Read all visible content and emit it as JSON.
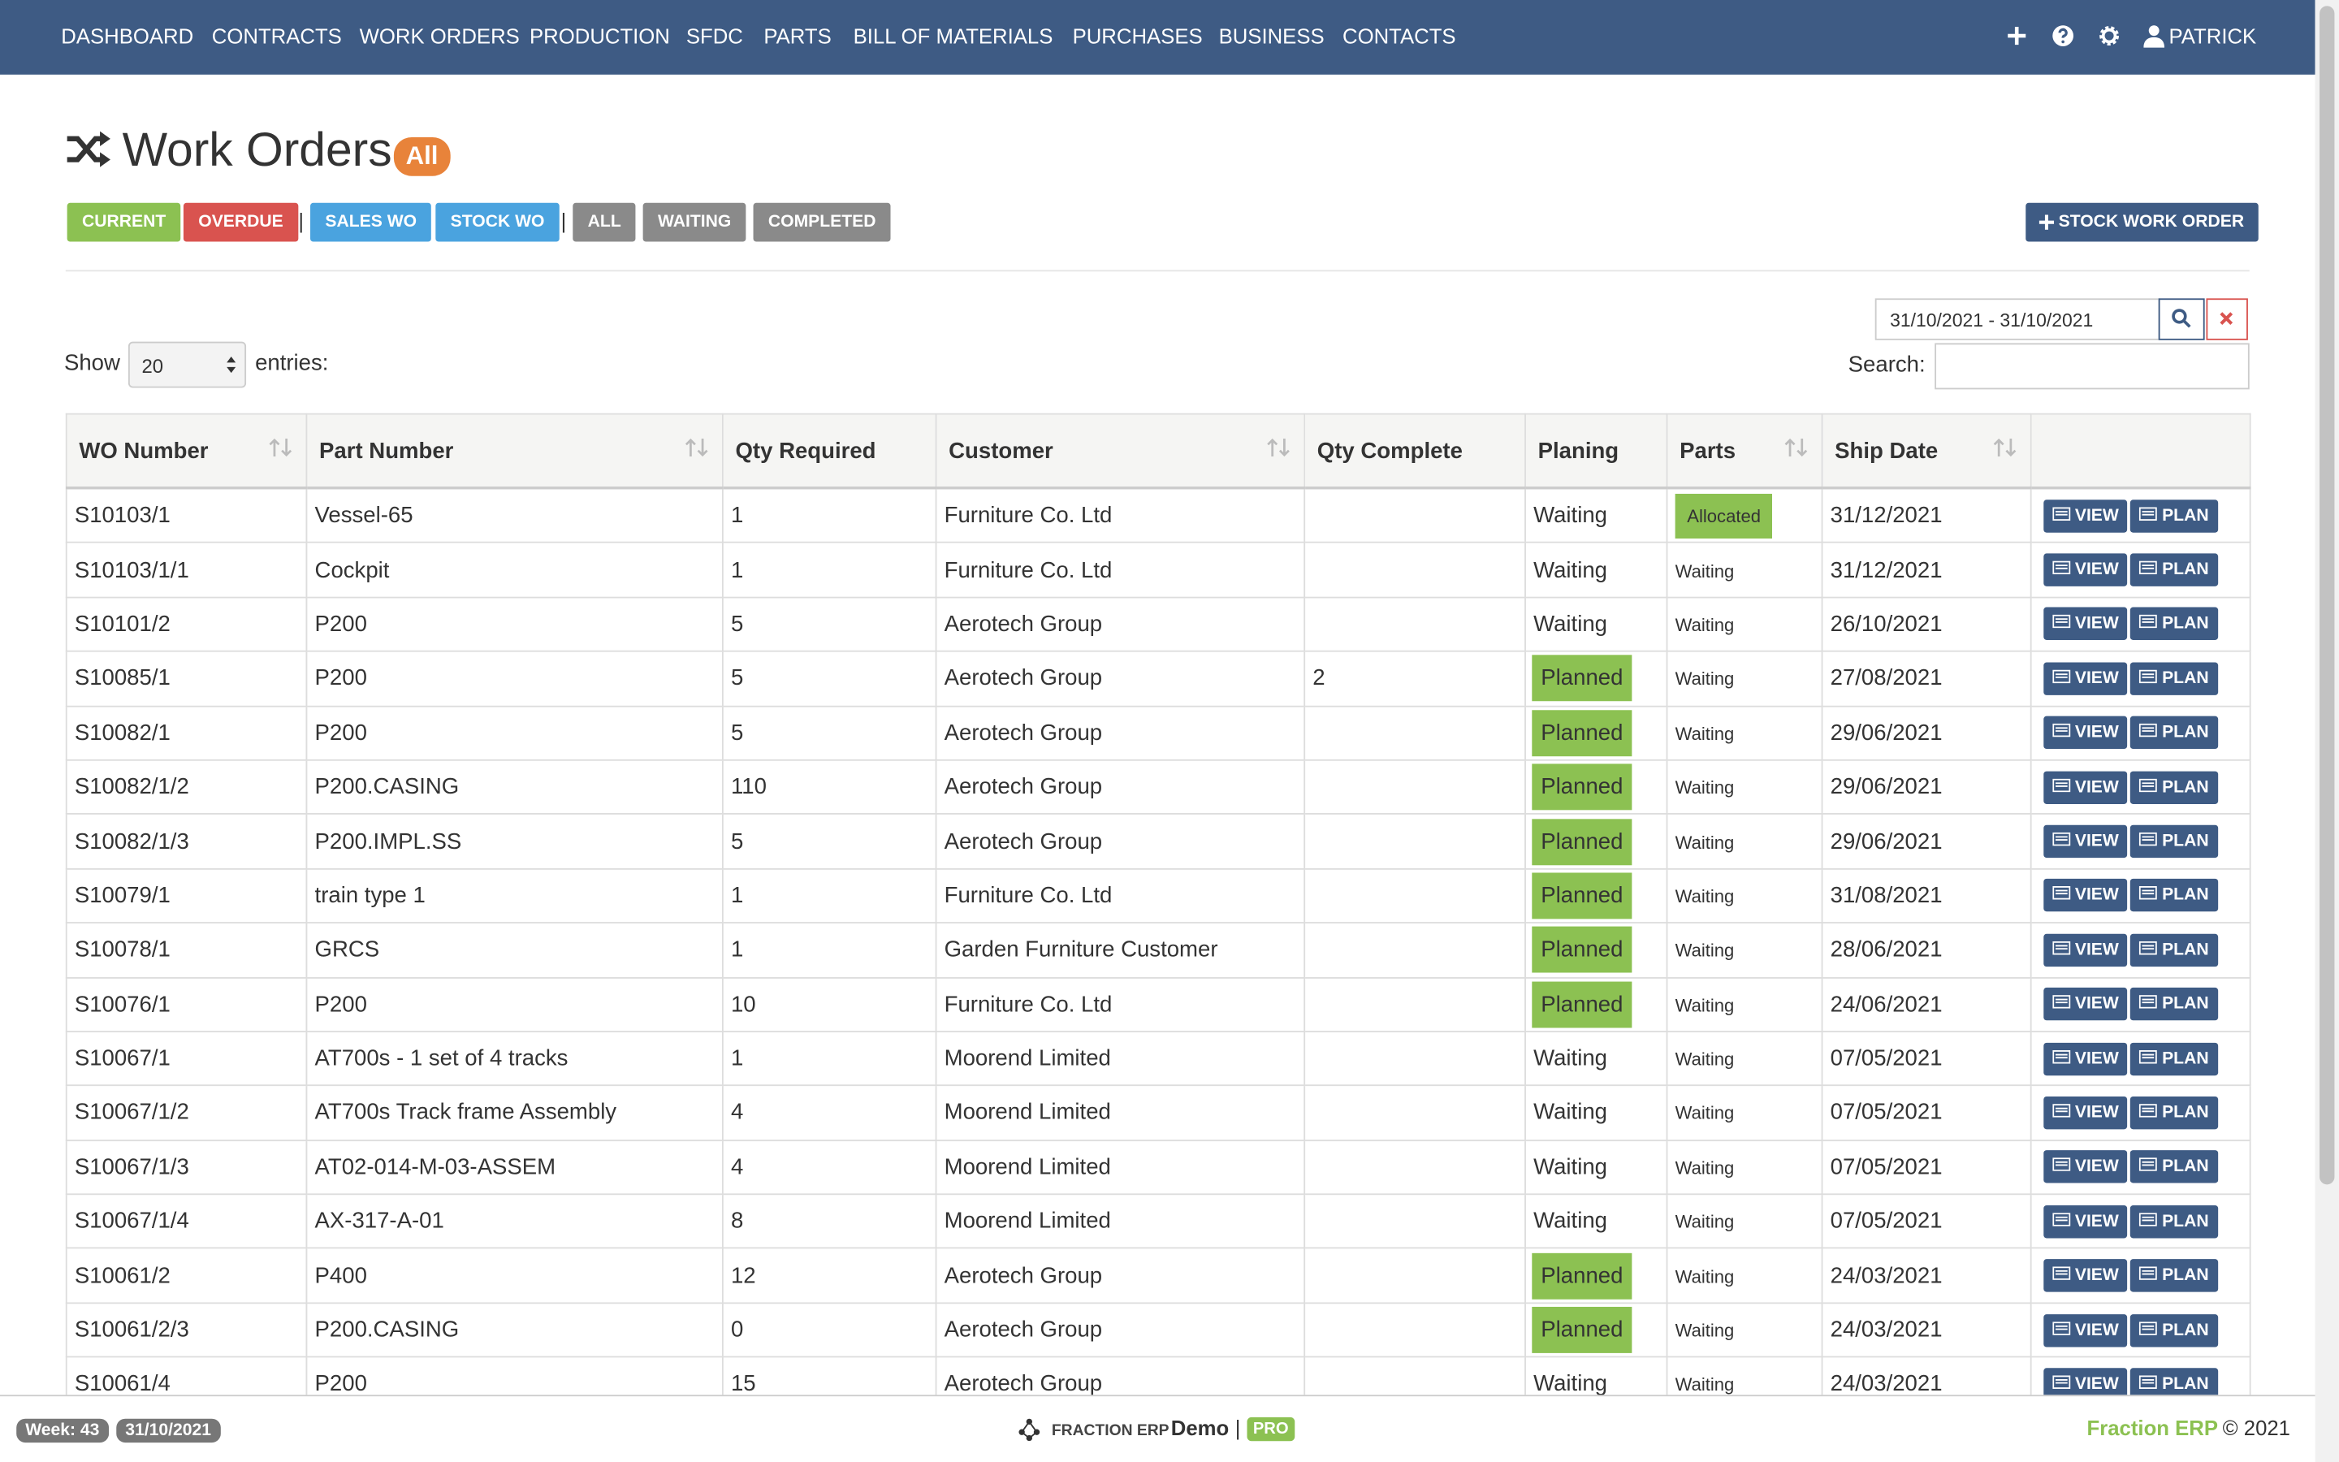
{
  "nav": {
    "items": [
      "DASHBOARD",
      "CONTRACTS",
      "WORK ORDERS",
      "PRODUCTION",
      "SFDC",
      "PARTS",
      "BILL OF MATERIALS",
      "PURCHASES",
      "BUSINESS",
      "CONTACTS"
    ],
    "user": "PATRICK"
  },
  "header": {
    "title": "Work Orders",
    "badge": "All",
    "filters": [
      {
        "label": "CURRENT",
        "color": "#8cc152"
      },
      {
        "label": "OVERDUE",
        "color": "#d9534f"
      },
      {
        "label": "|"
      },
      {
        "label": "SALES WO",
        "color": "#4aa3df"
      },
      {
        "label": "STOCK WO",
        "color": "#4aa3df"
      },
      {
        "label": "|"
      },
      {
        "label": "ALL",
        "color": "#8a8a8a"
      },
      {
        "label": "WAITING",
        "color": "#8a8a8a"
      },
      {
        "label": "COMPLETED",
        "color": "#8a8a8a"
      }
    ],
    "new_button": "STOCK WORK ORDER"
  },
  "controls": {
    "date_range": "31/10/2021 - 31/10/2021",
    "show_label": "Show",
    "page_size": "20",
    "entries_label": "entries:",
    "search_label": "Search:"
  },
  "table": {
    "columns": [
      "WO Number",
      "Part Number",
      "Qty Required",
      "Customer",
      "Qty Complete",
      "Planing",
      "Parts",
      "Ship Date",
      ""
    ],
    "sortable": [
      true,
      true,
      false,
      true,
      false,
      false,
      true,
      true,
      false
    ],
    "actions": [
      "VIEW",
      "PLAN"
    ],
    "rows": [
      [
        "S10103/1",
        "Vessel-65",
        "1",
        "Furniture Co. Ltd",
        "",
        "Waiting",
        "Allocated",
        "31/12/2021"
      ],
      [
        "S10103/1/1",
        "Cockpit",
        "1",
        "Furniture Co. Ltd",
        "",
        "Waiting",
        "Waiting",
        "31/12/2021"
      ],
      [
        "S10101/2",
        "P200",
        "5",
        "Aerotech Group",
        "",
        "Waiting",
        "Waiting",
        "26/10/2021"
      ],
      [
        "S10085/1",
        "P200",
        "5",
        "Aerotech Group",
        "2",
        "Planned",
        "Waiting",
        "27/08/2021"
      ],
      [
        "S10082/1",
        "P200",
        "5",
        "Aerotech Group",
        "",
        "Planned",
        "Waiting",
        "29/06/2021"
      ],
      [
        "S10082/1/2",
        "P200.CASING",
        "110",
        "Aerotech Group",
        "",
        "Planned",
        "Waiting",
        "29/06/2021"
      ],
      [
        "S10082/1/3",
        "P200.IMPL.SS",
        "5",
        "Aerotech Group",
        "",
        "Planned",
        "Waiting",
        "29/06/2021"
      ],
      [
        "S10079/1",
        "train type 1",
        "1",
        "Furniture Co. Ltd",
        "",
        "Planned",
        "Waiting",
        "31/08/2021"
      ],
      [
        "S10078/1",
        "GRCS",
        "1",
        "Garden Furniture Customer",
        "",
        "Planned",
        "Waiting",
        "28/06/2021"
      ],
      [
        "S10076/1",
        "P200",
        "10",
        "Furniture Co. Ltd",
        "",
        "Planned",
        "Waiting",
        "24/06/2021"
      ],
      [
        "S10067/1",
        "AT700s - 1 set of 4 tracks",
        "1",
        "Moorend Limited",
        "",
        "Waiting",
        "Waiting",
        "07/05/2021"
      ],
      [
        "S10067/1/2",
        "AT700s Track frame Assembly",
        "4",
        "Moorend Limited",
        "",
        "Waiting",
        "Waiting",
        "07/05/2021"
      ],
      [
        "S10067/1/3",
        "AT02-014-M-03-ASSEM",
        "4",
        "Moorend Limited",
        "",
        "Waiting",
        "Waiting",
        "07/05/2021"
      ],
      [
        "S10067/1/4",
        "AX-317-A-01",
        "8",
        "Moorend Limited",
        "",
        "Waiting",
        "Waiting",
        "07/05/2021"
      ],
      [
        "S10061/2",
        "P400",
        "12",
        "Aerotech Group",
        "",
        "Planned",
        "Waiting",
        "24/03/2021"
      ],
      [
        "S10061/2/3",
        "P200.CASING",
        "0",
        "Aerotech Group",
        "",
        "Planned",
        "Waiting",
        "24/03/2021"
      ],
      [
        "S10061/4",
        "P200",
        "15",
        "Aerotech Group",
        "",
        "Waiting",
        "Waiting",
        "24/03/2021"
      ]
    ]
  },
  "footer": {
    "week": "Week: 43",
    "date": "31/10/2021",
    "brand": "FRACTION ERP",
    "edition": "Demo",
    "separator": "|",
    "tier": "PRO",
    "company": "Fraction ERP",
    "copyright": "© 2021"
  }
}
